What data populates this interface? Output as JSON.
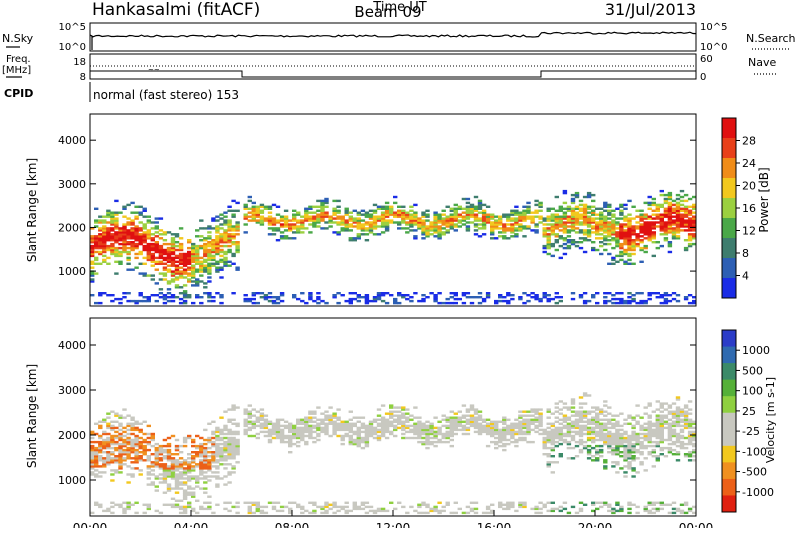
{
  "header": {
    "station": "Hankasalmi (fitACF)",
    "beam": "Beam 09",
    "date": "31/Jul/2013"
  },
  "noise_panel": {
    "left_label": "N.Sky",
    "right_label": "N.Search",
    "left_ticks": [
      "10^5",
      "10^0"
    ],
    "right_ticks": [
      "10^5",
      "10^0"
    ]
  },
  "freq_panel": {
    "left_label_line1": "Freq.",
    "left_label_line2": "[MHz]",
    "left_ticks": [
      "18",
      "8"
    ],
    "right_ticks": [
      "60",
      "0"
    ],
    "right_label": "Nave"
  },
  "cpid_panel": {
    "label": "CPID",
    "text": "normal (fast stereo) 153"
  },
  "x_axis": {
    "label": "Time UT",
    "ticks": [
      "00:00",
      "04:00",
      "08:00",
      "12:00",
      "16:00",
      "20:00",
      "00:00"
    ]
  },
  "chart_data": [
    {
      "type": "heatmap",
      "name": "power",
      "ylabel": "Slant Range [km]",
      "yticks": [
        "1000",
        "2000",
        "3000",
        "4000"
      ],
      "ylim": [
        200,
        4600
      ],
      "colorbar_label": "Power [dB]",
      "colorbar_ticks": [
        "4",
        "8",
        "12",
        "16",
        "20",
        "24",
        "28"
      ],
      "colors": [
        "#1a2ce6",
        "#2d5fb4",
        "#3e7d6e",
        "#4aa848",
        "#9bd040",
        "#f2c81e",
        "#f08c18",
        "#e8401a",
        "#e01010"
      ]
    },
    {
      "type": "heatmap",
      "name": "velocity",
      "ylabel": "Slant Range [km]",
      "yticks": [
        "1000",
        "2000",
        "3000",
        "4000"
      ],
      "ylim": [
        200,
        4600
      ],
      "colorbar_label": "Velocity [m s-1]",
      "colorbar_ticks": [
        "1000",
        "500",
        "100",
        "25",
        "-25",
        "-100",
        "-500",
        "-1000"
      ],
      "colors": [
        "#2b3cc8",
        "#2f6ab0",
        "#3b8a68",
        "#55b038",
        "#8fd040",
        "#c8c8c0",
        "#c8c8c0",
        "#f2c81e",
        "#f09020",
        "#ec6018",
        "#e02010"
      ]
    }
  ]
}
